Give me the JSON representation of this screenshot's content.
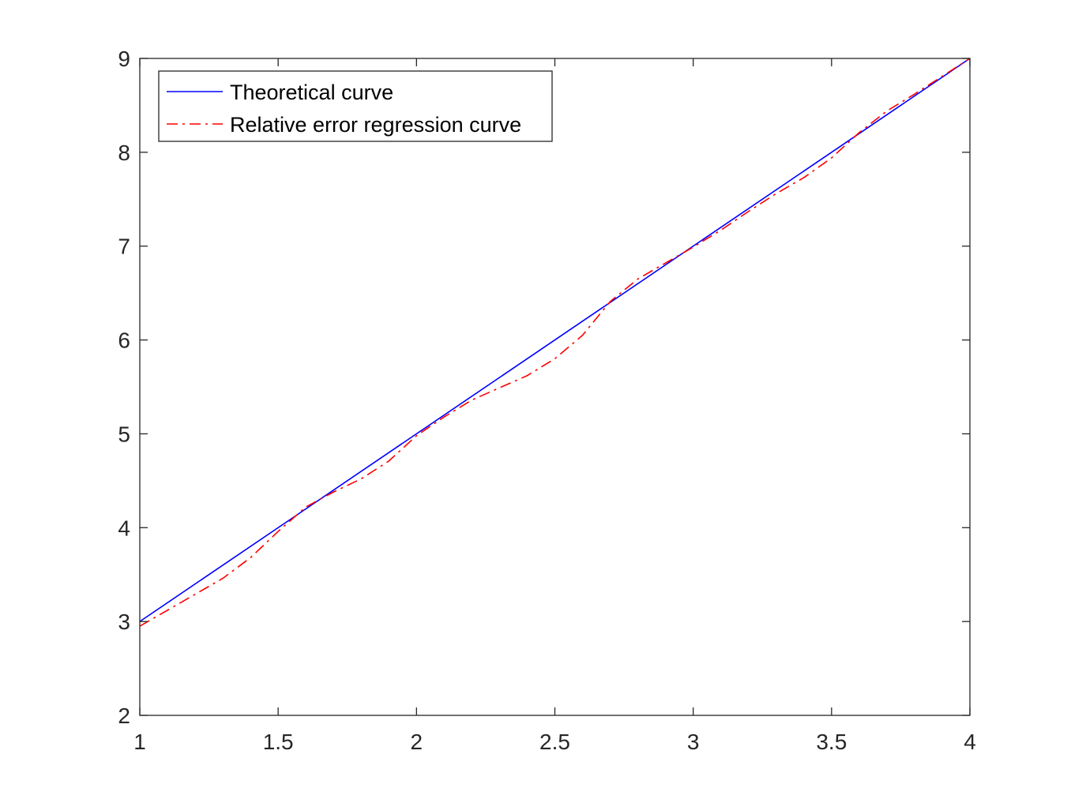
{
  "chart_data": {
    "type": "line",
    "xlim": [
      1,
      4
    ],
    "ylim": [
      2,
      9
    ],
    "x_ticks": [
      "1",
      "1.5",
      "2",
      "2.5",
      "3",
      "3.5",
      "4"
    ],
    "y_ticks": [
      "2",
      "3",
      "4",
      "5",
      "6",
      "7",
      "8",
      "9"
    ],
    "grid": false,
    "legend_position": "top-left",
    "series": [
      {
        "name": "Theoretical curve",
        "color": "#0000ff",
        "style": "solid",
        "x": [
          1,
          4
        ],
        "y": [
          3,
          9
        ]
      },
      {
        "name": "Relative error regression curve",
        "color": "#ff0000",
        "style": "dash-dot",
        "x": [
          1.0,
          1.1,
          1.2,
          1.3,
          1.4,
          1.5,
          1.6,
          1.7,
          1.8,
          1.9,
          2.0,
          2.1,
          2.2,
          2.3,
          2.4,
          2.5,
          2.6,
          2.7,
          2.8,
          2.9,
          3.0,
          3.1,
          3.2,
          3.3,
          3.4,
          3.5,
          3.6,
          3.7,
          3.8,
          3.9,
          4.0
        ],
        "y": [
          2.95,
          3.12,
          3.29,
          3.46,
          3.68,
          3.96,
          4.22,
          4.38,
          4.52,
          4.71,
          4.98,
          5.18,
          5.36,
          5.49,
          5.62,
          5.8,
          6.05,
          6.41,
          6.65,
          6.82,
          6.99,
          7.17,
          7.37,
          7.56,
          7.73,
          7.94,
          8.21,
          8.44,
          8.62,
          8.81,
          9.0
        ]
      }
    ]
  }
}
